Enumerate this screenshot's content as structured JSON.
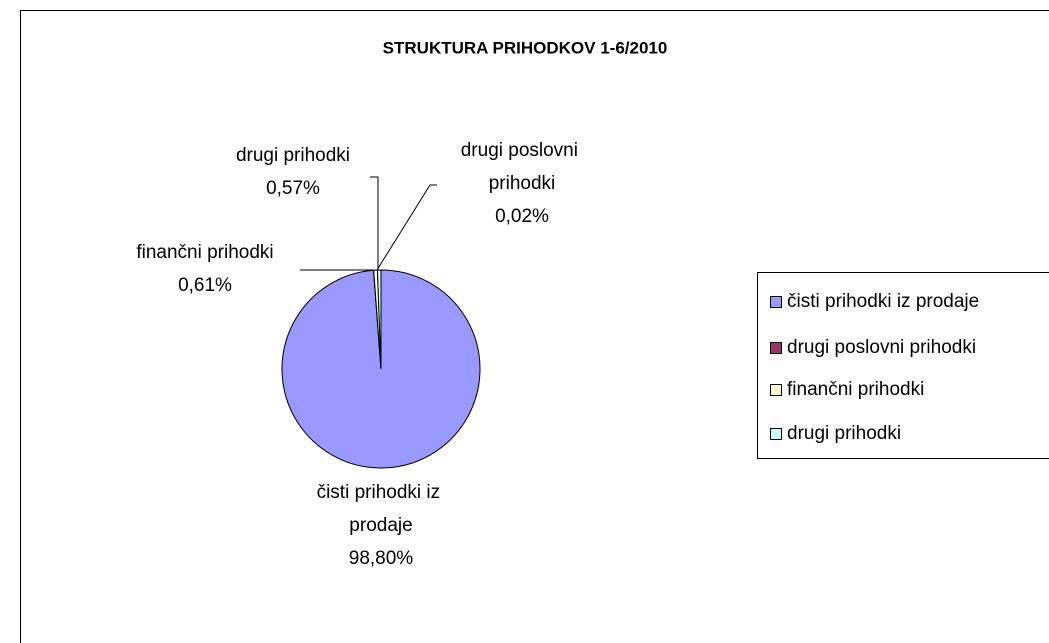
{
  "chart_data": {
    "type": "pie",
    "title": "STRUKTURA PRIHODKOV 1-6/2010",
    "categories": [
      "čisti prihodki iz prodaje",
      "drugi poslovni prihodki",
      "finančni prihodki",
      "drugi prihodki"
    ],
    "values": [
      98.8,
      0.02,
      0.61,
      0.57
    ],
    "value_labels": [
      "98,80%",
      "0,02%",
      "0,61%",
      "0,57%"
    ],
    "colors": [
      "#9999ff",
      "#993366",
      "#ffffcc",
      "#ccffff"
    ],
    "legend": "right"
  }
}
